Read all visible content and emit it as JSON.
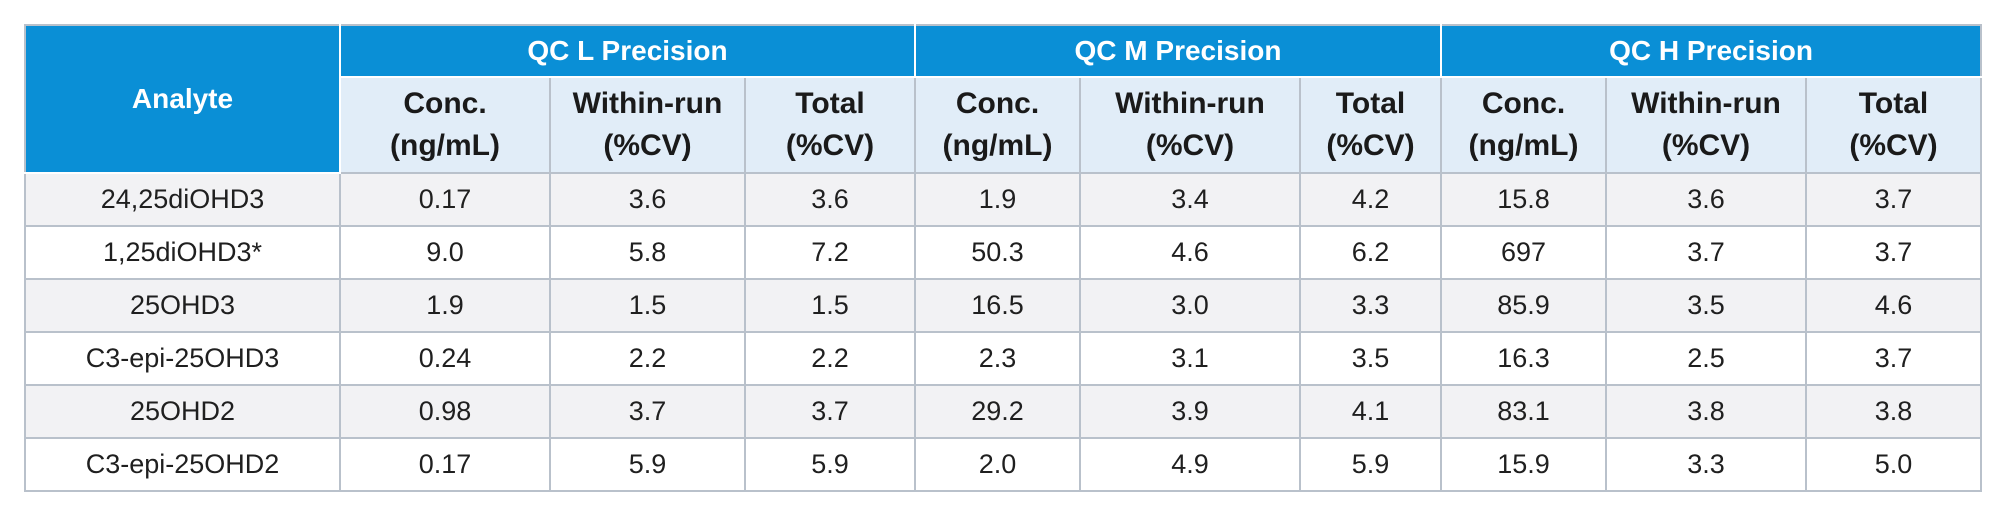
{
  "table": {
    "analyte_header": "Analyte",
    "groups": [
      "QC L Precision",
      "QC M Precision",
      "QC H Precision"
    ],
    "subheaders": [
      [
        "Conc.",
        "(ng/mL)"
      ],
      [
        "Within-run",
        "(%CV)"
      ],
      [
        "Total",
        "(%CV)"
      ],
      [
        "Conc.",
        "(ng/mL)"
      ],
      [
        "Within-run",
        "(%CV)"
      ],
      [
        "Total",
        "(%CV)"
      ],
      [
        "Conc.",
        "(ng/mL)"
      ],
      [
        "Within-run",
        "(%CV)"
      ],
      [
        "Total",
        "(%CV)"
      ]
    ],
    "rows": [
      {
        "analyte": "24,25diOHD3",
        "values": [
          "0.17",
          "3.6",
          "3.6",
          "1.9",
          "3.4",
          "4.2",
          "15.8",
          "3.6",
          "3.7"
        ]
      },
      {
        "analyte": "1,25diOHD3*",
        "values": [
          "9.0",
          "5.8",
          "7.2",
          "50.3",
          "4.6",
          "6.2",
          "697",
          "3.7",
          "3.7"
        ]
      },
      {
        "analyte": "25OHD3",
        "values": [
          "1.9",
          "1.5",
          "1.5",
          "16.5",
          "3.0",
          "3.3",
          "85.9",
          "3.5",
          "4.6"
        ]
      },
      {
        "analyte": "C3-epi-25OHD3",
        "values": [
          "0.24",
          "2.2",
          "2.2",
          "2.3",
          "3.1",
          "3.5",
          "16.3",
          "2.5",
          "3.7"
        ]
      },
      {
        "analyte": "25OHD2",
        "values": [
          "0.98",
          "3.7",
          "3.7",
          "29.2",
          "3.9",
          "4.1",
          "83.1",
          "3.8",
          "3.8"
        ]
      },
      {
        "analyte": "C3-epi-25OHD2",
        "values": [
          "0.17",
          "5.9",
          "5.9",
          "2.0",
          "4.9",
          "5.9",
          "15.9",
          "3.3",
          "5.0"
        ]
      }
    ],
    "colors": {
      "header_blue": "#0a8fd6",
      "subheader_bg": "#e1edf8",
      "alt_row_bg": "#f2f2f4",
      "border": "#b9c1cb"
    }
  }
}
